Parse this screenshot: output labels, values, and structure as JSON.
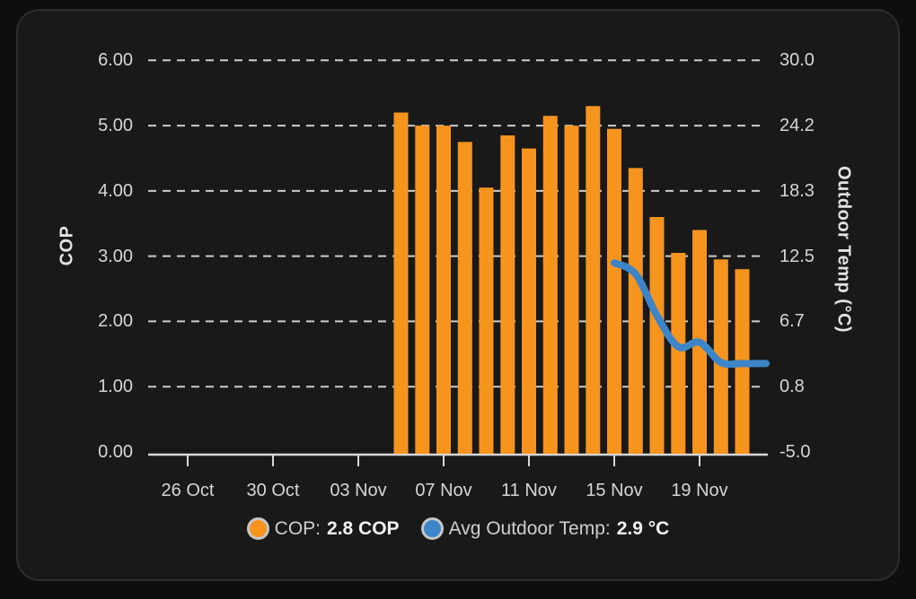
{
  "colors": {
    "background": "#0e0e0e",
    "card": "#191919",
    "card_border": "#2d2d2d",
    "grid": "#cdcdcd",
    "axis": "#d8d8d8",
    "text": "#d6d6d6",
    "bar": "#f7941e",
    "line": "#3d85c8"
  },
  "chart_data": {
    "type": "bar+line",
    "x_axis": {
      "tick_labels": [
        "26 Oct",
        "30 Oct",
        "03 Nov",
        "07 Nov",
        "11 Nov",
        "15 Nov",
        "19 Nov"
      ],
      "tick_interval_days": 4
    },
    "y_left": {
      "label": "COP",
      "ticks": [
        "6.00",
        "5.00",
        "4.00",
        "3.00",
        "2.00",
        "1.00",
        "0.00"
      ],
      "range": [
        0,
        6
      ],
      "grid": "dashed"
    },
    "y_right": {
      "label": "Outdoor Temp (°C)",
      "ticks": [
        "30.0",
        "24.2",
        "18.3",
        "12.5",
        "6.7",
        "0.8",
        "-5.0"
      ],
      "range": [
        -5,
        30
      ]
    },
    "series": [
      {
        "name": "COP",
        "type": "bar",
        "unit": "COP",
        "color": "#f7941e",
        "points": [
          {
            "date": "05 Nov",
            "day": 10,
            "value": 5.2
          },
          {
            "date": "06 Nov",
            "day": 11,
            "value": 5.0
          },
          {
            "date": "07 Nov",
            "day": 12,
            "value": 5.0
          },
          {
            "date": "08 Nov",
            "day": 13,
            "value": 4.75
          },
          {
            "date": "09 Nov",
            "day": 14,
            "value": 4.05
          },
          {
            "date": "10 Nov",
            "day": 15,
            "value": 4.85
          },
          {
            "date": "11 Nov",
            "day": 16,
            "value": 4.65
          },
          {
            "date": "12 Nov",
            "day": 17,
            "value": 5.15
          },
          {
            "date": "13 Nov",
            "day": 18,
            "value": 5.0
          },
          {
            "date": "14 Nov",
            "day": 19,
            "value": 5.3
          },
          {
            "date": "15 Nov",
            "day": 20,
            "value": 4.95
          },
          {
            "date": "16 Nov",
            "day": 21,
            "value": 4.35
          },
          {
            "date": "17 Nov",
            "day": 22,
            "value": 3.6
          },
          {
            "date": "18 Nov",
            "day": 23,
            "value": 3.05
          },
          {
            "date": "19 Nov",
            "day": 24,
            "value": 3.4
          },
          {
            "date": "20 Nov",
            "day": 25,
            "value": 2.95
          },
          {
            "date": "21 Nov",
            "day": 26,
            "value": 2.8
          }
        ]
      },
      {
        "name": "Avg Outdoor Temp",
        "type": "line",
        "unit": "°C",
        "color": "#3d85c8",
        "points": [
          {
            "date": "15 Nov",
            "day": 20,
            "value": 11.9
          },
          {
            "date": "16 Nov",
            "day": 21,
            "value": 10.9
          },
          {
            "date": "17 Nov",
            "day": 22,
            "value": 7.2
          },
          {
            "date": "18 Nov",
            "day": 23,
            "value": 4.4
          },
          {
            "date": "19 Nov",
            "day": 24,
            "value": 4.8
          },
          {
            "date": "20 Nov",
            "day": 25,
            "value": 3.0
          },
          {
            "date": "21 Nov",
            "day": 26,
            "value": 2.9
          }
        ]
      }
    ],
    "legend": {
      "items": [
        {
          "label": "COP:",
          "value": "2.8 COP"
        },
        {
          "label": "Avg Outdoor Temp:",
          "value": "2.9 °C"
        }
      ]
    }
  }
}
